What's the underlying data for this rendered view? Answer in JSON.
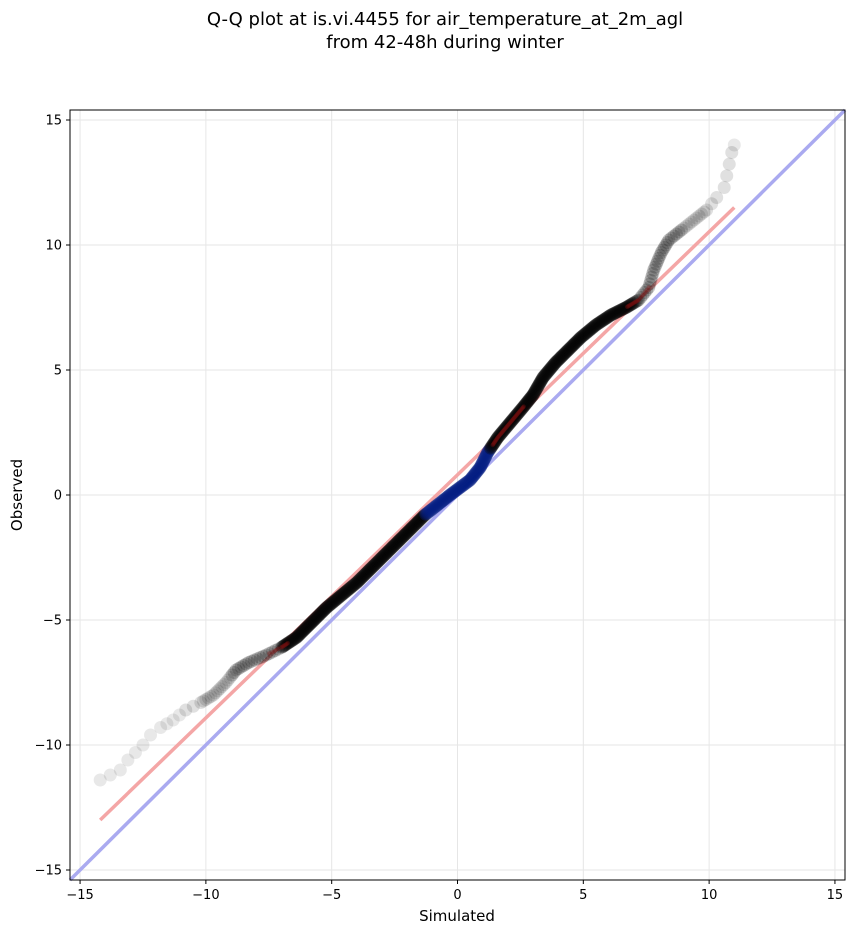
{
  "chart_data": {
    "type": "scatter",
    "title": [
      "Q-Q plot at is.vi.4455 for air_temperature_at_2m_agl",
      "from 42-48h during winter"
    ],
    "xlabel": "Simulated",
    "ylabel": "Observed",
    "xlim": [
      -15.4,
      15.4
    ],
    "ylim": [
      -15.4,
      15.4
    ],
    "xticks": [
      -15,
      -10,
      -5,
      0,
      5,
      10,
      15
    ],
    "yticks": [
      -15,
      -10,
      -5,
      0,
      5,
      10,
      15
    ],
    "tick_labels": [
      "−15",
      "−10",
      "−5",
      "0",
      "5",
      "10",
      "15"
    ],
    "grid": true,
    "quantile_points": [
      [
        -14.2,
        -11.4
      ],
      [
        -13.4,
        -11.0
      ],
      [
        -13.1,
        -10.6
      ],
      [
        -12.8,
        -10.3
      ],
      [
        -12.5,
        -10.0
      ],
      [
        -12.2,
        -9.6
      ],
      [
        -11.8,
        -9.3
      ],
      [
        -11.3,
        -9.0
      ],
      [
        -10.8,
        -8.6
      ],
      [
        -10.2,
        -8.3
      ],
      [
        -9.7,
        -8.0
      ],
      [
        -9.2,
        -7.5
      ],
      [
        -8.8,
        -7.0
      ],
      [
        -8.3,
        -6.7
      ],
      [
        -7.6,
        -6.4
      ],
      [
        -7.0,
        -6.1
      ],
      [
        -6.4,
        -5.7
      ],
      [
        -5.8,
        -5.1
      ],
      [
        -5.2,
        -4.5
      ],
      [
        -4.6,
        -4.0
      ],
      [
        -4.0,
        -3.5
      ],
      [
        -3.4,
        -2.9
      ],
      [
        -2.8,
        -2.3
      ],
      [
        -2.3,
        -1.8
      ],
      [
        -1.8,
        -1.3
      ],
      [
        -1.3,
        -0.8
      ],
      [
        -0.8,
        -0.4
      ],
      [
        -0.3,
        0.0
      ],
      [
        0.1,
        0.3
      ],
      [
        0.5,
        0.6
      ],
      [
        0.9,
        1.1
      ],
      [
        1.2,
        1.7
      ],
      [
        1.6,
        2.3
      ],
      [
        2.1,
        2.9
      ],
      [
        2.6,
        3.5
      ],
      [
        3.0,
        4.0
      ],
      [
        3.4,
        4.7
      ],
      [
        3.9,
        5.3
      ],
      [
        4.4,
        5.8
      ],
      [
        4.9,
        6.3
      ],
      [
        5.5,
        6.8
      ],
      [
        6.1,
        7.2
      ],
      [
        6.7,
        7.5
      ],
      [
        7.2,
        7.8
      ],
      [
        7.6,
        8.3
      ],
      [
        7.8,
        9.0
      ],
      [
        8.1,
        9.7
      ],
      [
        8.4,
        10.2
      ],
      [
        8.9,
        10.6
      ],
      [
        9.4,
        11.0
      ],
      [
        9.9,
        11.4
      ],
      [
        10.3,
        11.9
      ],
      [
        10.6,
        12.3
      ],
      [
        10.9,
        13.7
      ],
      [
        11.0,
        14.0
      ]
    ],
    "identity_line": {
      "from": [
        -15.4,
        -15.4
      ],
      "to": [
        15.4,
        15.4
      ],
      "color": "#aaaaf0"
    },
    "fit_line": {
      "from": [
        -14.2,
        -13.0
      ],
      "to": [
        11.0,
        11.5
      ],
      "color": "#f4a6a6"
    },
    "point_color": "#000000",
    "center_color": "#001a80",
    "red_overlay_color": "#8a1010"
  }
}
